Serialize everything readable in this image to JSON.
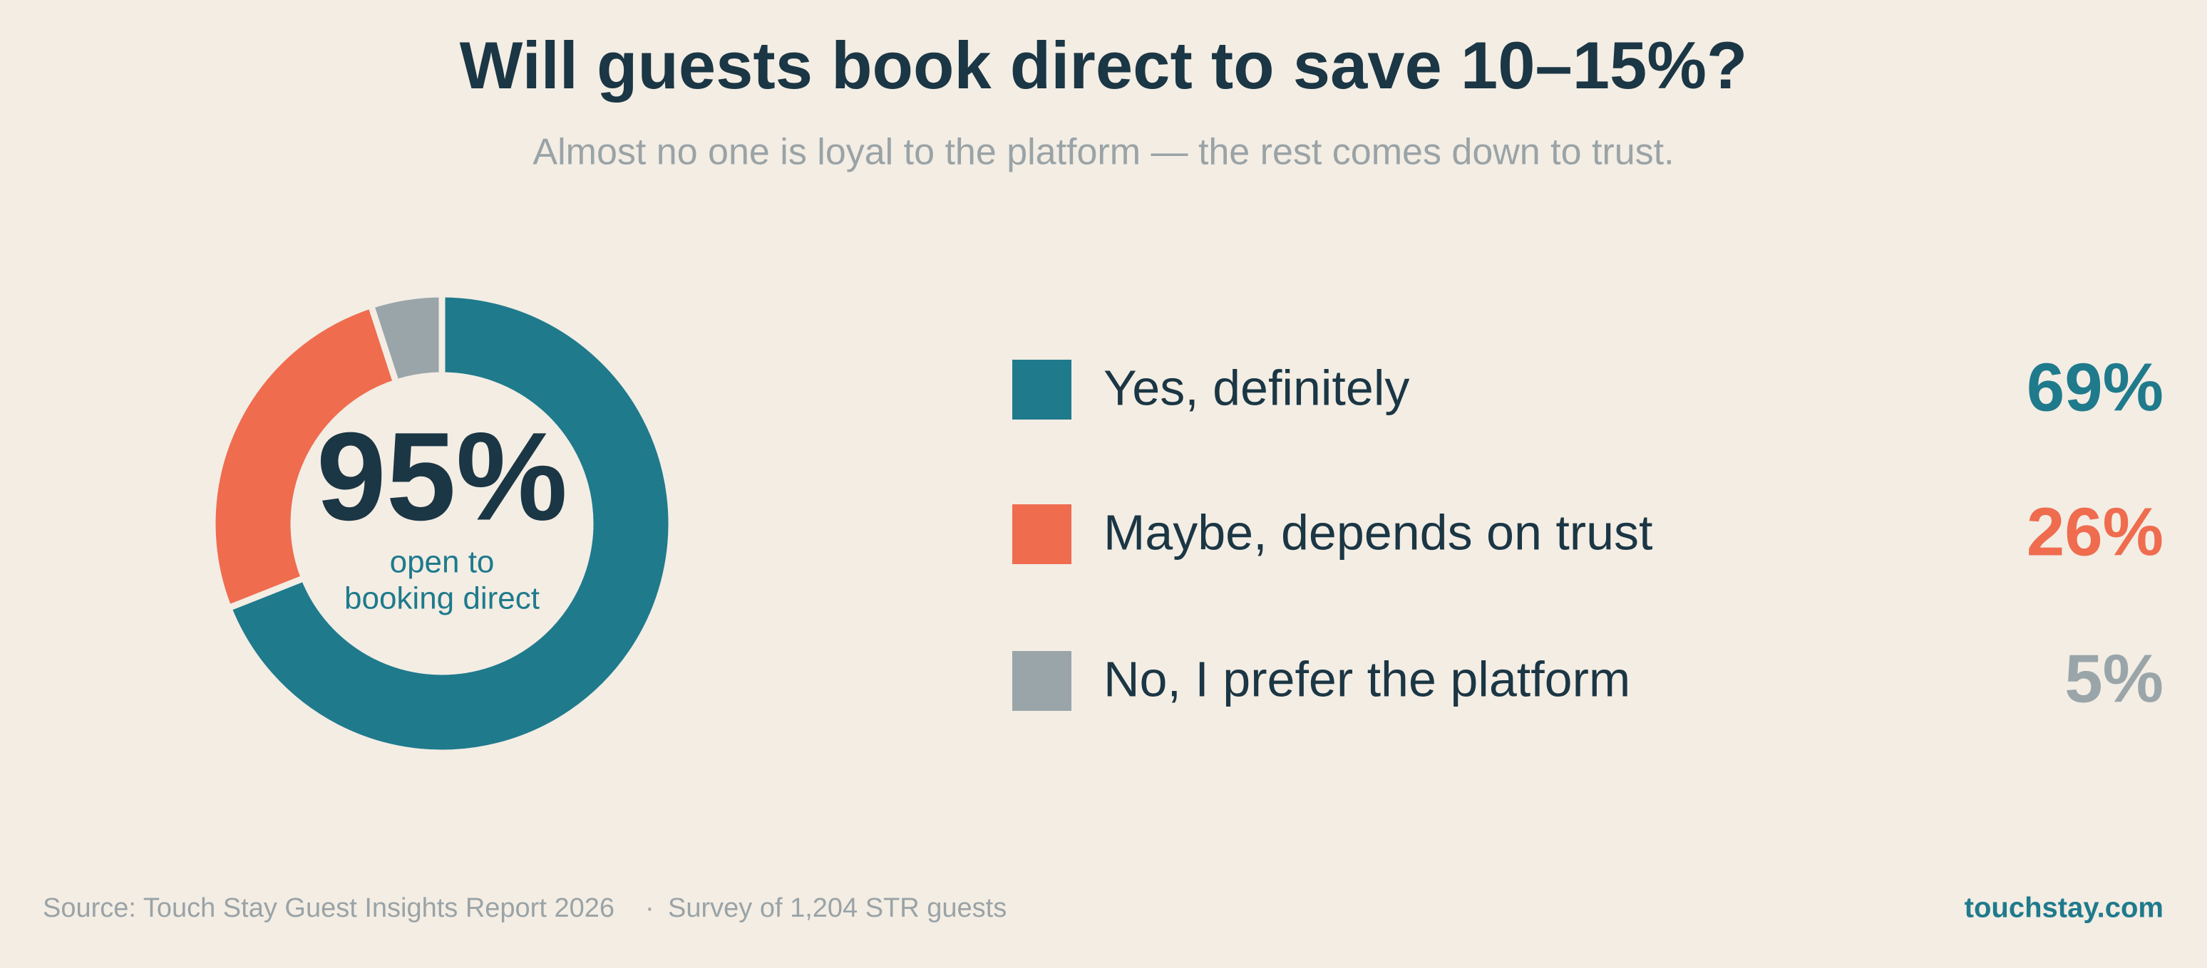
{
  "chart_data": {
    "type": "donut",
    "title": "Will guests book direct to save 10–15%?",
    "subtitle": "Almost no one is loyal to the platform — the rest comes down to trust.",
    "center_value": "95%",
    "center_label": [
      "open to",
      "booking direct"
    ],
    "categories": [
      "Yes, definitely",
      "Maybe, depends on trust",
      "No, I prefer the platform"
    ],
    "values": [
      69,
      26,
      5
    ],
    "value_labels": [
      "69%",
      "26%",
      "5%"
    ],
    "colors": [
      "#1f7a8c",
      "#ef6c4f",
      "#9aa5a9"
    ],
    "source": "Source: Touch Stay Guest Insights Report 2026",
    "note": "Survey of 1,204 STR guests",
    "brand": "touchstay.com"
  }
}
